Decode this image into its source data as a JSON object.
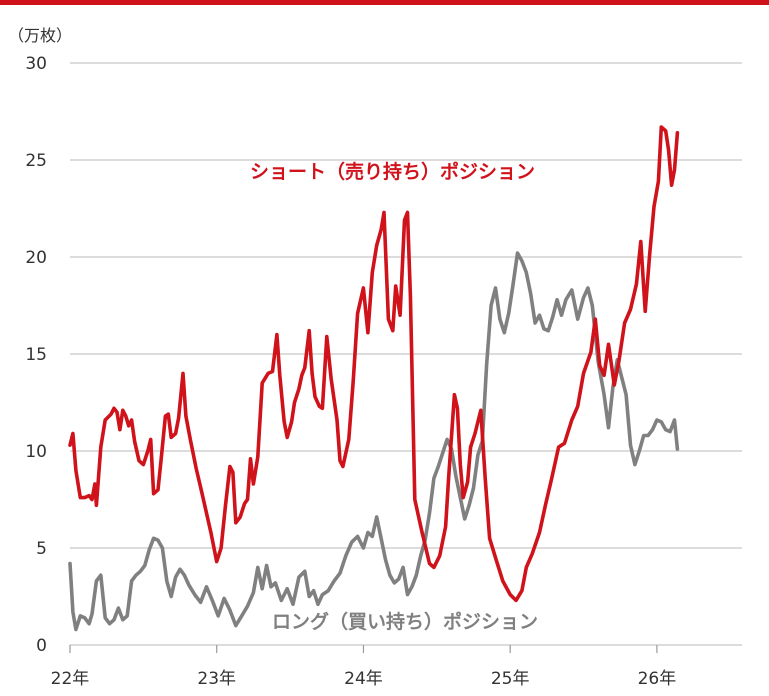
{
  "chart_data": {
    "type": "line",
    "unit_label": "（万枚）",
    "y_ticks": [
      "0",
      "5",
      "10",
      "15",
      "20",
      "25",
      "30"
    ],
    "ylim": [
      0,
      30
    ],
    "x_ticks": [
      "22年",
      "23年",
      "24年",
      "25年",
      "26年"
    ],
    "xlim": [
      2022.0,
      2026.58
    ],
    "grid": true,
    "colors": {
      "accent_rule": "#d0121b",
      "short": "#d0121b",
      "long": "#808080",
      "grid": "#c8c8c8"
    },
    "series": [
      {
        "name": "ショート（売り持ち）ポジション",
        "color": "#d0121b",
        "points": [
          [
            2022.0,
            10.3
          ],
          [
            2022.02,
            10.9
          ],
          [
            2022.04,
            9.0
          ],
          [
            2022.07,
            7.6
          ],
          [
            2022.1,
            7.6
          ],
          [
            2022.13,
            7.7
          ],
          [
            2022.15,
            7.5
          ],
          [
            2022.17,
            8.3
          ],
          [
            2022.18,
            7.2
          ],
          [
            2022.21,
            10.2
          ],
          [
            2022.24,
            11.6
          ],
          [
            2022.28,
            11.9
          ],
          [
            2022.3,
            12.2
          ],
          [
            2022.32,
            12.0
          ],
          [
            2022.34,
            11.1
          ],
          [
            2022.36,
            12.1
          ],
          [
            2022.38,
            11.8
          ],
          [
            2022.4,
            11.3
          ],
          [
            2022.42,
            11.6
          ],
          [
            2022.44,
            10.5
          ],
          [
            2022.47,
            9.5
          ],
          [
            2022.5,
            9.3
          ],
          [
            2022.53,
            10.0
          ],
          [
            2022.55,
            10.6
          ],
          [
            2022.57,
            7.8
          ],
          [
            2022.6,
            8.0
          ],
          [
            2022.62,
            9.5
          ],
          [
            2022.65,
            11.8
          ],
          [
            2022.67,
            11.9
          ],
          [
            2022.69,
            10.7
          ],
          [
            2022.72,
            10.9
          ],
          [
            2022.74,
            11.7
          ],
          [
            2022.77,
            14.0
          ],
          [
            2022.79,
            11.8
          ],
          [
            2022.82,
            10.6
          ],
          [
            2022.86,
            9.1
          ],
          [
            2022.9,
            7.8
          ],
          [
            2022.93,
            6.8
          ],
          [
            2022.96,
            5.8
          ],
          [
            2023.0,
            4.3
          ],
          [
            2023.03,
            5.0
          ],
          [
            2023.06,
            7.2
          ],
          [
            2023.09,
            9.2
          ],
          [
            2023.11,
            8.9
          ],
          [
            2023.13,
            6.3
          ],
          [
            2023.16,
            6.6
          ],
          [
            2023.19,
            7.3
          ],
          [
            2023.21,
            7.5
          ],
          [
            2023.23,
            9.6
          ],
          [
            2023.25,
            8.3
          ],
          [
            2023.28,
            9.7
          ],
          [
            2023.31,
            13.5
          ],
          [
            2023.35,
            14.0
          ],
          [
            2023.38,
            14.1
          ],
          [
            2023.41,
            16.0
          ],
          [
            2023.43,
            13.9
          ],
          [
            2023.46,
            11.5
          ],
          [
            2023.48,
            10.7
          ],
          [
            2023.51,
            11.5
          ],
          [
            2023.53,
            12.5
          ],
          [
            2023.56,
            13.2
          ],
          [
            2023.58,
            13.9
          ],
          [
            2023.6,
            14.3
          ],
          [
            2023.63,
            16.2
          ],
          [
            2023.65,
            14.0
          ],
          [
            2023.67,
            12.8
          ],
          [
            2023.7,
            12.3
          ],
          [
            2023.72,
            12.2
          ],
          [
            2023.75,
            15.9
          ],
          [
            2023.78,
            13.7
          ],
          [
            2023.82,
            11.6
          ],
          [
            2023.84,
            9.5
          ],
          [
            2023.86,
            9.2
          ],
          [
            2023.9,
            10.6
          ],
          [
            2023.93,
            13.6
          ],
          [
            2023.96,
            17.1
          ],
          [
            2024.0,
            18.4
          ],
          [
            2024.03,
            16.1
          ],
          [
            2024.06,
            19.2
          ],
          [
            2024.09,
            20.6
          ],
          [
            2024.12,
            21.4
          ],
          [
            2024.14,
            22.3
          ],
          [
            2024.17,
            16.8
          ],
          [
            2024.2,
            16.2
          ],
          [
            2024.22,
            18.5
          ],
          [
            2024.25,
            17.0
          ],
          [
            2024.28,
            21.9
          ],
          [
            2024.3,
            22.3
          ],
          [
            2024.32,
            18.0
          ],
          [
            2024.35,
            7.5
          ],
          [
            2024.4,
            5.8
          ],
          [
            2024.45,
            4.2
          ],
          [
            2024.48,
            4.0
          ],
          [
            2024.52,
            4.6
          ],
          [
            2024.56,
            6.1
          ],
          [
            2024.58,
            8.6
          ],
          [
            2024.62,
            12.9
          ],
          [
            2024.64,
            12.2
          ],
          [
            2024.66,
            9.3
          ],
          [
            2024.68,
            7.6
          ],
          [
            2024.71,
            8.4
          ],
          [
            2024.73,
            10.2
          ],
          [
            2024.76,
            10.9
          ],
          [
            2024.8,
            12.1
          ],
          [
            2024.83,
            8.6
          ],
          [
            2024.86,
            5.5
          ],
          [
            2024.9,
            4.5
          ],
          [
            2024.95,
            3.3
          ],
          [
            2025.0,
            2.6
          ],
          [
            2025.04,
            2.3
          ],
          [
            2025.08,
            2.8
          ],
          [
            2025.11,
            4.0
          ],
          [
            2025.15,
            4.7
          ],
          [
            2025.2,
            5.8
          ],
          [
            2025.24,
            7.2
          ],
          [
            2025.28,
            8.5
          ],
          [
            2025.33,
            10.2
          ],
          [
            2025.37,
            10.4
          ],
          [
            2025.42,
            11.6
          ],
          [
            2025.46,
            12.3
          ],
          [
            2025.5,
            14.0
          ],
          [
            2025.55,
            15.1
          ],
          [
            2025.58,
            16.8
          ],
          [
            2025.61,
            14.4
          ],
          [
            2025.64,
            13.9
          ],
          [
            2025.67,
            15.5
          ],
          [
            2025.71,
            13.4
          ],
          [
            2025.74,
            14.6
          ],
          [
            2025.78,
            16.6
          ],
          [
            2025.82,
            17.3
          ],
          [
            2025.86,
            18.6
          ],
          [
            2025.89,
            20.8
          ],
          [
            2025.92,
            17.2
          ],
          [
            2025.95,
            20.1
          ],
          [
            2025.98,
            22.6
          ],
          [
            2026.01,
            23.9
          ],
          [
            2026.03,
            26.7
          ],
          [
            2026.06,
            26.5
          ],
          [
            2026.08,
            25.5
          ],
          [
            2026.1,
            23.7
          ],
          [
            2026.12,
            24.5
          ],
          [
            2026.14,
            26.4
          ]
        ]
      },
      {
        "name": "ロング（買い持ち）ポジション",
        "color": "#808080",
        "points": [
          [
            2022.0,
            4.2
          ],
          [
            2022.02,
            1.7
          ],
          [
            2022.04,
            0.8
          ],
          [
            2022.07,
            1.5
          ],
          [
            2022.1,
            1.4
          ],
          [
            2022.13,
            1.1
          ],
          [
            2022.15,
            1.6
          ],
          [
            2022.18,
            3.3
          ],
          [
            2022.21,
            3.6
          ],
          [
            2022.24,
            1.4
          ],
          [
            2022.27,
            1.1
          ],
          [
            2022.3,
            1.3
          ],
          [
            2022.33,
            1.9
          ],
          [
            2022.36,
            1.3
          ],
          [
            2022.39,
            1.5
          ],
          [
            2022.42,
            3.3
          ],
          [
            2022.45,
            3.6
          ],
          [
            2022.48,
            3.8
          ],
          [
            2022.51,
            4.1
          ],
          [
            2022.54,
            4.9
          ],
          [
            2022.57,
            5.5
          ],
          [
            2022.6,
            5.4
          ],
          [
            2022.63,
            5.0
          ],
          [
            2022.66,
            3.3
          ],
          [
            2022.69,
            2.5
          ],
          [
            2022.72,
            3.5
          ],
          [
            2022.75,
            3.9
          ],
          [
            2022.78,
            3.6
          ],
          [
            2022.81,
            3.1
          ],
          [
            2022.85,
            2.6
          ],
          [
            2022.89,
            2.2
          ],
          [
            2022.93,
            3.0
          ],
          [
            2022.97,
            2.3
          ],
          [
            2023.01,
            1.5
          ],
          [
            2023.05,
            2.4
          ],
          [
            2023.09,
            1.8
          ],
          [
            2023.13,
            1.0
          ],
          [
            2023.17,
            1.5
          ],
          [
            2023.21,
            2.0
          ],
          [
            2023.25,
            2.7
          ],
          [
            2023.28,
            4.0
          ],
          [
            2023.31,
            2.9
          ],
          [
            2023.34,
            4.1
          ],
          [
            2023.37,
            3.0
          ],
          [
            2023.4,
            3.2
          ],
          [
            2023.44,
            2.3
          ],
          [
            2023.48,
            2.9
          ],
          [
            2023.52,
            2.1
          ],
          [
            2023.56,
            3.5
          ],
          [
            2023.6,
            3.8
          ],
          [
            2023.63,
            2.5
          ],
          [
            2023.66,
            2.8
          ],
          [
            2023.69,
            2.1
          ],
          [
            2023.72,
            2.6
          ],
          [
            2023.76,
            2.8
          ],
          [
            2023.8,
            3.3
          ],
          [
            2023.84,
            3.7
          ],
          [
            2023.88,
            4.6
          ],
          [
            2023.92,
            5.3
          ],
          [
            2023.96,
            5.6
          ],
          [
            2024.0,
            5.0
          ],
          [
            2024.03,
            5.8
          ],
          [
            2024.06,
            5.6
          ],
          [
            2024.09,
            6.6
          ],
          [
            2024.12,
            5.5
          ],
          [
            2024.15,
            4.4
          ],
          [
            2024.18,
            3.6
          ],
          [
            2024.21,
            3.2
          ],
          [
            2024.24,
            3.4
          ],
          [
            2024.27,
            4.0
          ],
          [
            2024.3,
            2.6
          ],
          [
            2024.33,
            3.0
          ],
          [
            2024.36,
            3.6
          ],
          [
            2024.39,
            4.6
          ],
          [
            2024.42,
            5.4
          ],
          [
            2024.45,
            6.8
          ],
          [
            2024.48,
            8.6
          ],
          [
            2024.51,
            9.2
          ],
          [
            2024.54,
            9.9
          ],
          [
            2024.57,
            10.6
          ],
          [
            2024.6,
            10.1
          ],
          [
            2024.63,
            8.7
          ],
          [
            2024.66,
            7.6
          ],
          [
            2024.69,
            6.5
          ],
          [
            2024.72,
            7.2
          ],
          [
            2024.75,
            8.1
          ],
          [
            2024.78,
            9.8
          ],
          [
            2024.81,
            10.5
          ],
          [
            2024.84,
            14.5
          ],
          [
            2024.87,
            17.5
          ],
          [
            2024.9,
            18.4
          ],
          [
            2024.93,
            16.8
          ],
          [
            2024.96,
            16.1
          ],
          [
            2024.99,
            17.1
          ],
          [
            2025.02,
            18.6
          ],
          [
            2025.05,
            20.2
          ],
          [
            2025.08,
            19.8
          ],
          [
            2025.11,
            19.2
          ],
          [
            2025.14,
            18.1
          ],
          [
            2025.17,
            16.6
          ],
          [
            2025.2,
            17.0
          ],
          [
            2025.23,
            16.3
          ],
          [
            2025.26,
            16.2
          ],
          [
            2025.29,
            16.9
          ],
          [
            2025.32,
            17.8
          ],
          [
            2025.35,
            17.0
          ],
          [
            2025.38,
            17.8
          ],
          [
            2025.42,
            18.3
          ],
          [
            2025.46,
            16.8
          ],
          [
            2025.5,
            17.9
          ],
          [
            2025.53,
            18.4
          ],
          [
            2025.56,
            17.5
          ],
          [
            2025.6,
            14.6
          ],
          [
            2025.64,
            12.9
          ],
          [
            2025.67,
            11.2
          ],
          [
            2025.7,
            13.3
          ],
          [
            2025.73,
            14.7
          ],
          [
            2025.76,
            13.8
          ],
          [
            2025.79,
            12.9
          ],
          [
            2025.82,
            10.3
          ],
          [
            2025.85,
            9.3
          ],
          [
            2025.88,
            10.0
          ],
          [
            2025.91,
            10.8
          ],
          [
            2025.94,
            10.8
          ],
          [
            2025.97,
            11.1
          ],
          [
            2026.0,
            11.6
          ],
          [
            2026.03,
            11.5
          ],
          [
            2026.06,
            11.1
          ],
          [
            2026.09,
            11.0
          ],
          [
            2026.12,
            11.6
          ],
          [
            2026.14,
            10.1
          ]
        ]
      }
    ]
  }
}
